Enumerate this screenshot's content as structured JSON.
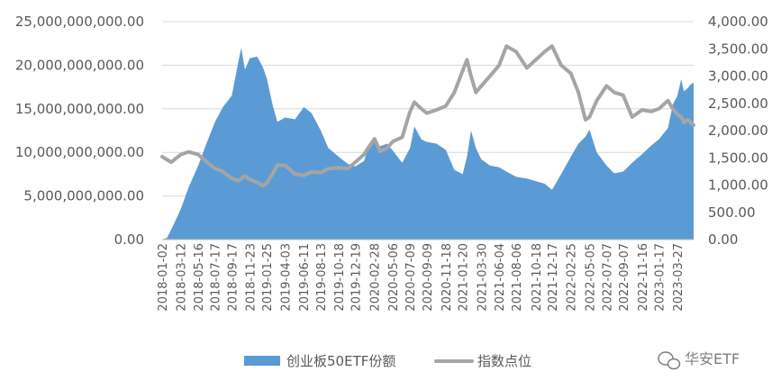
{
  "colors": {
    "area": "#5B9BD5",
    "line": "#A5A5A5",
    "grid": "#D9D9D9",
    "text": "#595959"
  },
  "watermark": {
    "text": "华安ETF",
    "icon": "wechat-icon"
  },
  "chart_data": {
    "type": "area+line",
    "legend_position": "bottom",
    "grid": true,
    "y_left": {
      "min": 0,
      "max": 25000000000,
      "step": 5000000000,
      "tick_labels": [
        "0.00",
        "5,000,000,000.00",
        "10,000,000,000.00",
        "15,000,000,000.00",
        "20,000,000,000.00",
        "25,000,000,000.00"
      ]
    },
    "y_right": {
      "min": 0,
      "max": 4000,
      "step": 500,
      "tick_labels": [
        "0.00",
        "500.00",
        "1,000.00",
        "1,500.00",
        "2,000.00",
        "2,500.00",
        "3,000.00",
        "3,500.00",
        "4,000.00"
      ]
    },
    "x_tick_labels": [
      "2018-01-02",
      "2018-03-12",
      "2018-05-16",
      "2018-07-17",
      "2018-09-17",
      "2018-11-23",
      "2019-01-25",
      "2019-04-03",
      "2019-06-11",
      "2019-08-13",
      "2019-10-18",
      "2019-12-19",
      "2020-02-28",
      "2020-05-06",
      "2020-07-09",
      "2020-09-09",
      "2020-11-18",
      "2021-01-20",
      "2021-03-30",
      "2021-06-04",
      "2021-08-06",
      "2021-10-18",
      "2021-12-17",
      "2022-02-25",
      "2022-05-05",
      "2022-07-07",
      "2022-09-07",
      "2022-11-16",
      "2023-01-17",
      "2023-03-27"
    ],
    "series": [
      {
        "name": "创业板50ETF份额",
        "type": "area",
        "axis": "left",
        "points": [
          [
            "2018-01-02",
            0
          ],
          [
            "2018-01-20",
            200000000
          ],
          [
            "2018-02-10",
            1500000000
          ],
          [
            "2018-03-12",
            3500000000
          ],
          [
            "2018-04-10",
            6000000000
          ],
          [
            "2018-05-16",
            8500000000
          ],
          [
            "2018-06-15",
            11000000000
          ],
          [
            "2018-07-17",
            13500000000
          ],
          [
            "2018-08-15",
            15200000000
          ],
          [
            "2018-09-17",
            16500000000
          ],
          [
            "2018-10-12",
            20500000000
          ],
          [
            "2018-10-22",
            22000000000
          ],
          [
            "2018-11-05",
            19500000000
          ],
          [
            "2018-11-23",
            20800000000
          ],
          [
            "2018-12-20",
            21000000000
          ],
          [
            "2019-01-10",
            19800000000
          ],
          [
            "2019-01-25",
            18500000000
          ],
          [
            "2019-02-15",
            15500000000
          ],
          [
            "2019-03-05",
            13500000000
          ],
          [
            "2019-04-03",
            14000000000
          ],
          [
            "2019-05-10",
            13800000000
          ],
          [
            "2019-06-11",
            15200000000
          ],
          [
            "2019-07-10",
            14500000000
          ],
          [
            "2019-08-13",
            12500000000
          ],
          [
            "2019-09-10",
            10500000000
          ],
          [
            "2019-10-18",
            9500000000
          ],
          [
            "2019-11-20",
            8700000000
          ],
          [
            "2019-12-19",
            8400000000
          ],
          [
            "2020-01-20",
            9000000000
          ],
          [
            "2020-02-10",
            11000000000
          ],
          [
            "2020-02-28",
            11300000000
          ],
          [
            "2020-03-20",
            10700000000
          ],
          [
            "2020-04-15",
            11000000000
          ],
          [
            "2020-05-06",
            10200000000
          ],
          [
            "2020-06-10",
            8800000000
          ],
          [
            "2020-07-09",
            10500000000
          ],
          [
            "2020-07-25",
            13000000000
          ],
          [
            "2020-08-20",
            11500000000
          ],
          [
            "2020-09-09",
            11200000000
          ],
          [
            "2020-10-15",
            11000000000
          ],
          [
            "2020-11-18",
            10300000000
          ],
          [
            "2020-12-20",
            8000000000
          ],
          [
            "2021-01-20",
            7500000000
          ],
          [
            "2021-02-05",
            9500000000
          ],
          [
            "2021-02-20",
            12500000000
          ],
          [
            "2021-03-10",
            10500000000
          ],
          [
            "2021-03-30",
            9200000000
          ],
          [
            "2021-05-01",
            8500000000
          ],
          [
            "2021-06-04",
            8300000000
          ],
          [
            "2021-07-01",
            7800000000
          ],
          [
            "2021-08-06",
            7200000000
          ],
          [
            "2021-09-15",
            7000000000
          ],
          [
            "2021-10-18",
            6700000000
          ],
          [
            "2021-11-20",
            6400000000
          ],
          [
            "2021-12-17",
            5700000000
          ],
          [
            "2022-01-20",
            7500000000
          ],
          [
            "2022-02-25",
            9500000000
          ],
          [
            "2022-03-25",
            11000000000
          ],
          [
            "2022-04-20",
            11800000000
          ],
          [
            "2022-05-05",
            12600000000
          ],
          [
            "2022-06-01",
            10000000000
          ],
          [
            "2022-07-07",
            8500000000
          ],
          [
            "2022-08-05",
            7600000000
          ],
          [
            "2022-09-07",
            7800000000
          ],
          [
            "2022-10-10",
            8800000000
          ],
          [
            "2022-11-16",
            9800000000
          ],
          [
            "2022-12-20",
            10800000000
          ],
          [
            "2023-01-17",
            11500000000
          ],
          [
            "2023-02-20",
            12800000000
          ],
          [
            "2023-03-10",
            15500000000
          ],
          [
            "2023-03-27",
            16500000000
          ],
          [
            "2023-04-10",
            18400000000
          ],
          [
            "2023-04-20",
            17000000000
          ],
          [
            "2023-05-05",
            17400000000
          ],
          [
            "2023-05-15",
            17800000000
          ],
          [
            "2023-05-26",
            18000000000
          ]
        ]
      },
      {
        "name": "指数点位",
        "type": "line",
        "axis": "right",
        "points": [
          [
            "2018-01-02",
            1520
          ],
          [
            "2018-02-05",
            1420
          ],
          [
            "2018-03-12",
            1560
          ],
          [
            "2018-04-10",
            1610
          ],
          [
            "2018-05-16",
            1560
          ],
          [
            "2018-06-15",
            1430
          ],
          [
            "2018-07-17",
            1300
          ],
          [
            "2018-08-15",
            1250
          ],
          [
            "2018-09-17",
            1120
          ],
          [
            "2018-10-12",
            1080
          ],
          [
            "2018-11-05",
            1170
          ],
          [
            "2018-11-23",
            1100
          ],
          [
            "2018-12-20",
            1050
          ],
          [
            "2019-01-10",
            990
          ],
          [
            "2019-01-25",
            1040
          ],
          [
            "2019-02-15",
            1200
          ],
          [
            "2019-03-05",
            1370
          ],
          [
            "2019-04-03",
            1360
          ],
          [
            "2019-05-10",
            1200
          ],
          [
            "2019-06-11",
            1180
          ],
          [
            "2019-07-10",
            1240
          ],
          [
            "2019-08-13",
            1230
          ],
          [
            "2019-09-10",
            1300
          ],
          [
            "2019-10-18",
            1320
          ],
          [
            "2019-11-20",
            1300
          ],
          [
            "2019-12-19",
            1420
          ],
          [
            "2020-01-20",
            1560
          ],
          [
            "2020-02-10",
            1720
          ],
          [
            "2020-02-28",
            1850
          ],
          [
            "2020-03-20",
            1620
          ],
          [
            "2020-04-15",
            1680
          ],
          [
            "2020-05-06",
            1800
          ],
          [
            "2020-06-10",
            1880
          ],
          [
            "2020-07-09",
            2350
          ],
          [
            "2020-07-25",
            2520
          ],
          [
            "2020-08-20",
            2400
          ],
          [
            "2020-09-09",
            2320
          ],
          [
            "2020-10-15",
            2380
          ],
          [
            "2020-11-18",
            2450
          ],
          [
            "2020-12-20",
            2700
          ],
          [
            "2021-01-20",
            3100
          ],
          [
            "2021-02-05",
            3300
          ],
          [
            "2021-02-20",
            3000
          ],
          [
            "2021-03-10",
            2700
          ],
          [
            "2021-03-30",
            2820
          ],
          [
            "2021-05-01",
            3000
          ],
          [
            "2021-06-04",
            3200
          ],
          [
            "2021-07-01",
            3550
          ],
          [
            "2021-08-06",
            3450
          ],
          [
            "2021-09-15",
            3150
          ],
          [
            "2021-10-18",
            3300
          ],
          [
            "2021-11-20",
            3450
          ],
          [
            "2021-12-17",
            3550
          ],
          [
            "2022-01-20",
            3200
          ],
          [
            "2022-02-25",
            3050
          ],
          [
            "2022-03-25",
            2700
          ],
          [
            "2022-04-20",
            2200
          ],
          [
            "2022-05-05",
            2250
          ],
          [
            "2022-06-01",
            2550
          ],
          [
            "2022-07-07",
            2820
          ],
          [
            "2022-08-05",
            2700
          ],
          [
            "2022-09-07",
            2650
          ],
          [
            "2022-10-10",
            2250
          ],
          [
            "2022-11-16",
            2380
          ],
          [
            "2022-12-20",
            2350
          ],
          [
            "2023-01-17",
            2400
          ],
          [
            "2023-02-20",
            2550
          ],
          [
            "2023-03-10",
            2400
          ],
          [
            "2023-03-27",
            2300
          ],
          [
            "2023-04-10",
            2250
          ],
          [
            "2023-04-20",
            2150
          ],
          [
            "2023-05-05",
            2200
          ],
          [
            "2023-05-15",
            2150
          ],
          [
            "2023-05-26",
            2100
          ]
        ]
      }
    ]
  }
}
